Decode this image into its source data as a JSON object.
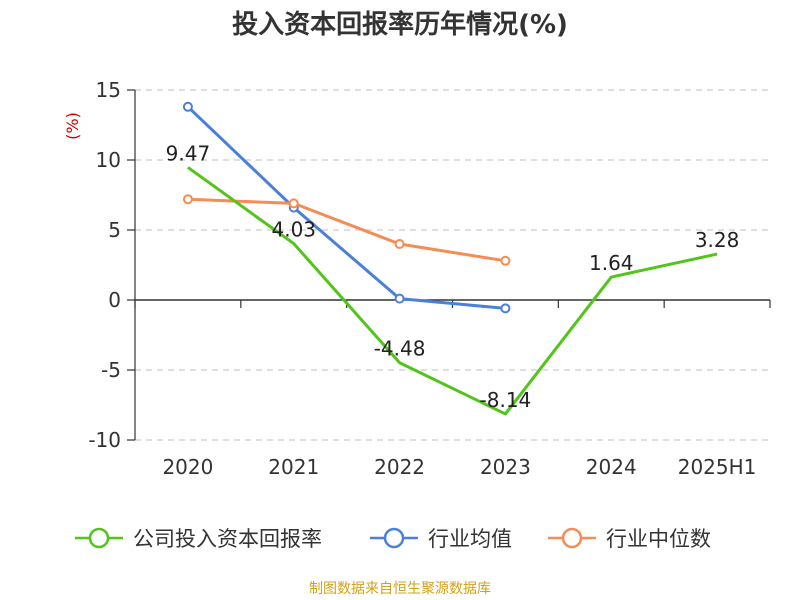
{
  "chart_data": {
    "type": "line",
    "title": "投入资本回报率历年情况(%)",
    "ylabel": "(%)",
    "categories": [
      "2020",
      "2021",
      "2022",
      "2023",
      "2024",
      "2025H1"
    ],
    "ylim": [
      -10,
      15
    ],
    "yticks": [
      -10,
      -5,
      0,
      5,
      10,
      15
    ],
    "grid": true,
    "legend_position": "bottom",
    "series": [
      {
        "name": "公司投入资本回报率",
        "color": "#52c41a",
        "values": [
          9.47,
          4.03,
          -4.48,
          -8.14,
          1.64,
          3.28
        ],
        "labels": [
          "9.47",
          "4.03",
          "-4.48",
          "-8.14",
          "1.64",
          "3.28"
        ]
      },
      {
        "name": "行业均值",
        "color": "#4a7fdc",
        "values": [
          13.8,
          6.6,
          0.1,
          -0.6,
          null,
          null
        ]
      },
      {
        "name": "行业中位数",
        "color": "#f68c55",
        "values": [
          7.2,
          6.9,
          4.0,
          2.8,
          null,
          null
        ]
      }
    ]
  },
  "source": "制图数据来自恒生聚源数据库"
}
